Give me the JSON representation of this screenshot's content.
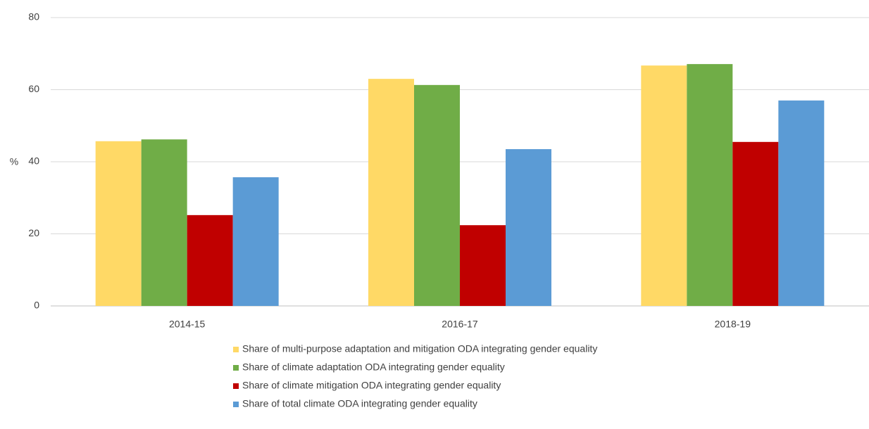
{
  "chart_data": {
    "type": "bar",
    "y_label": "%",
    "categories": [
      "2014-15",
      "2016-17",
      "2018-19"
    ],
    "series": [
      {
        "name": "Share of multi-purpose adaptation and mitigation ODA integrating gender equality",
        "color": "#ffd966",
        "values": [
          45.7,
          63.0,
          66.7
        ]
      },
      {
        "name": "Share of climate adaptation ODA integrating gender equality",
        "color": "#70ad47",
        "values": [
          46.2,
          61.3,
          67.1
        ]
      },
      {
        "name": "Share of climate mitigation ODA integrating gender equality",
        "color": "#c00000",
        "values": [
          25.2,
          22.4,
          45.5
        ]
      },
      {
        "name": "Share of total climate ODA integrating gender equality",
        "color": "#5b9bd5",
        "values": [
          35.7,
          43.5,
          57.0
        ]
      }
    ],
    "ylim": [
      0,
      80
    ],
    "yticks": [
      0,
      20,
      40,
      60,
      80
    ],
    "grid": true,
    "legend": "bottom"
  }
}
